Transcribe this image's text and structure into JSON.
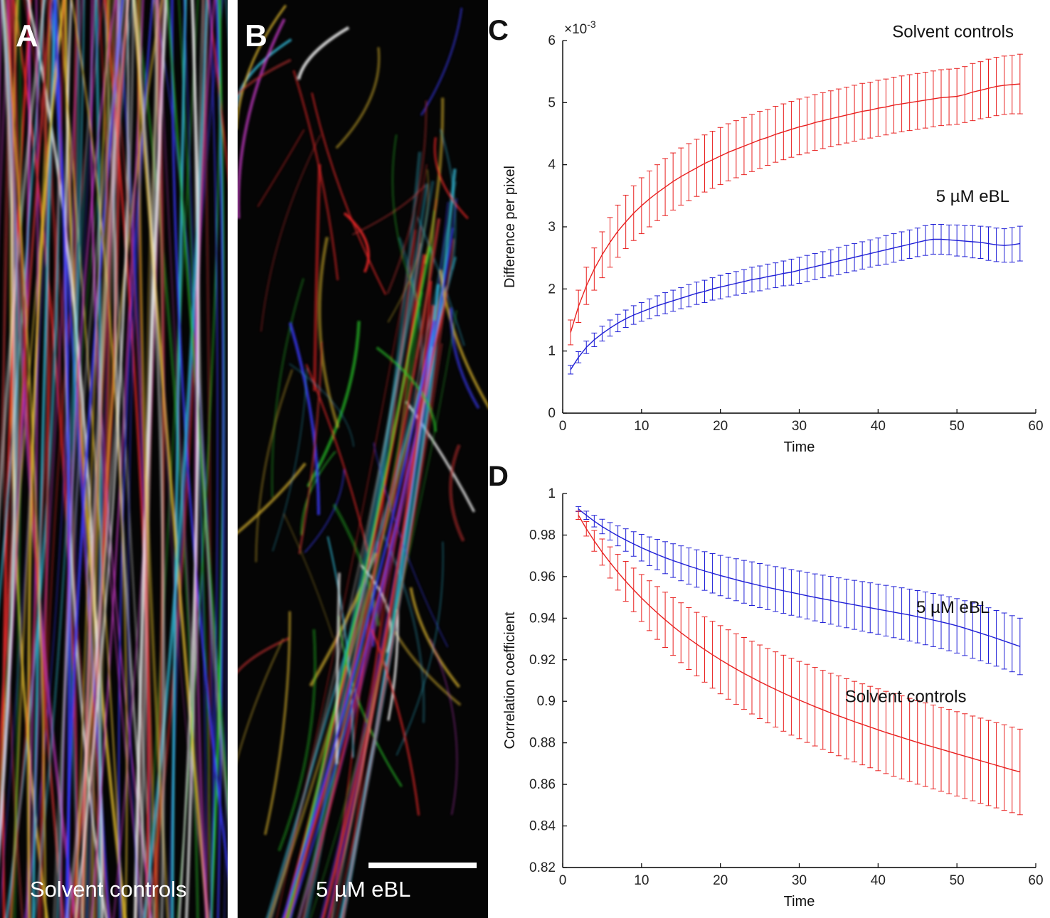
{
  "panels": {
    "a": {
      "letter": "A",
      "caption": "Solvent controls"
    },
    "b": {
      "letter": "B",
      "caption": "5 µM eBL"
    },
    "c": {
      "letter": "C"
    },
    "d": {
      "letter": "D"
    }
  },
  "colors": {
    "solvent": "#e8201f",
    "ebl": "#1f1fd6",
    "axis": "#000000"
  },
  "chart_data": [
    {
      "type": "line",
      "panel": "C",
      "xlabel": "Time",
      "ylabel": "Difference per pixel",
      "exponent_label": "×10",
      "exponent_power": "-3",
      "xlim": [
        0,
        60
      ],
      "ylim": [
        0,
        6
      ],
      "xticks": [
        0,
        10,
        20,
        30,
        40,
        50,
        60
      ],
      "yticks": [
        0,
        1,
        2,
        3,
        4,
        5,
        6
      ],
      "x_start": 1,
      "x_step": 1,
      "grid": false,
      "annotations": [
        {
          "text": "Solvent controls",
          "x": 49.5,
          "y": 6.05,
          "color_key": "solvent"
        },
        {
          "text": "5 µM eBL",
          "x": 52,
          "y": 3.4,
          "color_key": "ebl"
        }
      ],
      "series": [
        {
          "name": "Solvent controls",
          "color_key": "solvent",
          "values": [
            1.3,
            1.72,
            2.05,
            2.32,
            2.55,
            2.75,
            2.93,
            3.08,
            3.22,
            3.34,
            3.45,
            3.55,
            3.64,
            3.73,
            3.81,
            3.88,
            3.95,
            4.02,
            4.08,
            4.14,
            4.2,
            4.25,
            4.3,
            4.35,
            4.4,
            4.44,
            4.49,
            4.53,
            4.57,
            4.61,
            4.64,
            4.68,
            4.71,
            4.74,
            4.77,
            4.8,
            4.83,
            4.86,
            4.88,
            4.91,
            4.93,
            4.96,
            4.98,
            5.0,
            5.02,
            5.04,
            5.06,
            5.08,
            5.09,
            5.1,
            5.13,
            5.17,
            5.2,
            5.23,
            5.26,
            5.28,
            5.29,
            5.3
          ],
          "errors": [
            0.2,
            0.26,
            0.3,
            0.34,
            0.37,
            0.4,
            0.42,
            0.43,
            0.44,
            0.45,
            0.45,
            0.45,
            0.46,
            0.46,
            0.46,
            0.46,
            0.46,
            0.46,
            0.46,
            0.46,
            0.46,
            0.46,
            0.46,
            0.46,
            0.46,
            0.45,
            0.45,
            0.45,
            0.45,
            0.45,
            0.45,
            0.45,
            0.45,
            0.45,
            0.45,
            0.45,
            0.45,
            0.45,
            0.45,
            0.45,
            0.45,
            0.45,
            0.45,
            0.45,
            0.45,
            0.45,
            0.45,
            0.45,
            0.45,
            0.45,
            0.45,
            0.46,
            0.46,
            0.47,
            0.47,
            0.47,
            0.47,
            0.48
          ]
        },
        {
          "name": "5 µM eBL",
          "color_key": "ebl",
          "values": [
            0.7,
            0.9,
            1.06,
            1.18,
            1.28,
            1.37,
            1.45,
            1.52,
            1.58,
            1.63,
            1.68,
            1.73,
            1.77,
            1.81,
            1.85,
            1.89,
            1.93,
            1.96,
            2.0,
            2.03,
            2.06,
            2.09,
            2.12,
            2.15,
            2.17,
            2.2,
            2.22,
            2.25,
            2.27,
            2.3,
            2.33,
            2.36,
            2.39,
            2.42,
            2.45,
            2.48,
            2.51,
            2.54,
            2.57,
            2.6,
            2.63,
            2.66,
            2.69,
            2.72,
            2.75,
            2.78,
            2.8,
            2.8,
            2.79,
            2.78,
            2.77,
            2.76,
            2.75,
            2.73,
            2.71,
            2.7,
            2.71,
            2.73
          ],
          "errors": [
            0.07,
            0.09,
            0.1,
            0.11,
            0.12,
            0.13,
            0.14,
            0.14,
            0.15,
            0.15,
            0.16,
            0.16,
            0.17,
            0.17,
            0.17,
            0.18,
            0.18,
            0.18,
            0.18,
            0.19,
            0.19,
            0.19,
            0.19,
            0.2,
            0.2,
            0.2,
            0.2,
            0.2,
            0.21,
            0.21,
            0.21,
            0.21,
            0.21,
            0.21,
            0.22,
            0.22,
            0.22,
            0.22,
            0.22,
            0.22,
            0.23,
            0.23,
            0.23,
            0.23,
            0.23,
            0.24,
            0.24,
            0.24,
            0.24,
            0.25,
            0.25,
            0.26,
            0.26,
            0.27,
            0.27,
            0.27,
            0.28,
            0.28
          ]
        }
      ]
    },
    {
      "type": "line",
      "panel": "D",
      "xlabel": "Time",
      "ylabel": "Correlation coefficient",
      "xlim": [
        0,
        60
      ],
      "ylim": [
        0.82,
        1
      ],
      "xticks": [
        0,
        10,
        20,
        30,
        40,
        50,
        60
      ],
      "yticks": [
        0.82,
        0.84,
        0.86,
        0.88,
        0.9,
        0.92,
        0.94,
        0.96,
        0.98,
        1
      ],
      "x_start": 2,
      "x_step": 1,
      "grid": false,
      "annotations": [
        {
          "text": "5 µM eBL",
          "x": 49.5,
          "y": 0.9425,
          "color_key": "ebl"
        },
        {
          "text": "Solvent controls",
          "x": 43.5,
          "y": 0.8995,
          "color_key": "solvent"
        }
      ],
      "series": [
        {
          "name": "5 µM eBL",
          "color_key": "ebl",
          "values": [
            0.9925,
            0.9895,
            0.9867,
            0.9841,
            0.9818,
            0.9796,
            0.9776,
            0.9757,
            0.9739,
            0.9722,
            0.9706,
            0.9691,
            0.9677,
            0.9664,
            0.9651,
            0.9639,
            0.9627,
            0.9616,
            0.9605,
            0.9595,
            0.9585,
            0.9575,
            0.9566,
            0.9557,
            0.9548,
            0.954,
            0.9532,
            0.9524,
            0.9516,
            0.9508,
            0.95,
            0.9493,
            0.9486,
            0.9478,
            0.9471,
            0.9464,
            0.9457,
            0.945,
            0.9443,
            0.9436,
            0.9429,
            0.9422,
            0.9415,
            0.9407,
            0.9399,
            0.9391,
            0.9382,
            0.9373,
            0.9363,
            0.9352,
            0.934,
            0.9328,
            0.9316,
            0.9303,
            0.929,
            0.9277,
            0.9264
          ],
          "errors": [
            0.0012,
            0.002,
            0.0028,
            0.0035,
            0.0042,
            0.0048,
            0.0054,
            0.0059,
            0.0064,
            0.0069,
            0.0073,
            0.0077,
            0.0081,
            0.0084,
            0.0087,
            0.009,
            0.0093,
            0.0095,
            0.0097,
            0.0099,
            0.0101,
            0.0103,
            0.0105,
            0.0106,
            0.0107,
            0.0108,
            0.0109,
            0.011,
            0.0111,
            0.0112,
            0.0113,
            0.0114,
            0.0115,
            0.0116,
            0.0117,
            0.0118,
            0.0119,
            0.012,
            0.0121,
            0.0122,
            0.0123,
            0.0124,
            0.0125,
            0.0126,
            0.0127,
            0.0128,
            0.0129,
            0.013,
            0.0131,
            0.0132,
            0.0133,
            0.0133,
            0.0134,
            0.0134,
            0.0135,
            0.0135,
            0.0136
          ]
        },
        {
          "name": "Solvent controls",
          "color_key": "solvent",
          "values": [
            0.9895,
            0.983,
            0.9772,
            0.9718,
            0.9668,
            0.9621,
            0.9577,
            0.9536,
            0.9497,
            0.946,
            0.9425,
            0.9392,
            0.936,
            0.933,
            0.9302,
            0.9275,
            0.9249,
            0.9224,
            0.92,
            0.9177,
            0.9155,
            0.9134,
            0.9114,
            0.9094,
            0.9075,
            0.9057,
            0.9039,
            0.9022,
            0.9006,
            0.899,
            0.8974,
            0.8959,
            0.8944,
            0.893,
            0.8916,
            0.8902,
            0.8889,
            0.8876,
            0.8863,
            0.885,
            0.8838,
            0.8826,
            0.8814,
            0.8802,
            0.8791,
            0.878,
            0.8769,
            0.8758,
            0.8747,
            0.8736,
            0.8725,
            0.8714,
            0.8703,
            0.8692,
            0.8681,
            0.867,
            0.866
          ],
          "errors": [
            0.002,
            0.0035,
            0.005,
            0.0063,
            0.0075,
            0.0086,
            0.0096,
            0.0105,
            0.0113,
            0.012,
            0.0127,
            0.0133,
            0.0139,
            0.0144,
            0.0149,
            0.0153,
            0.0157,
            0.0161,
            0.0164,
            0.0167,
            0.017,
            0.0173,
            0.0175,
            0.0177,
            0.0179,
            0.0181,
            0.0183,
            0.0185,
            0.0186,
            0.0188,
            0.0189,
            0.019,
            0.0191,
            0.0192,
            0.0193,
            0.0194,
            0.0195,
            0.0196,
            0.0197,
            0.0198,
            0.0199,
            0.02,
            0.02,
            0.0201,
            0.0201,
            0.0202,
            0.0202,
            0.0203,
            0.0203,
            0.0204,
            0.0204,
            0.0205,
            0.0205,
            0.0205,
            0.0206,
            0.0206,
            0.0206
          ]
        }
      ]
    }
  ]
}
